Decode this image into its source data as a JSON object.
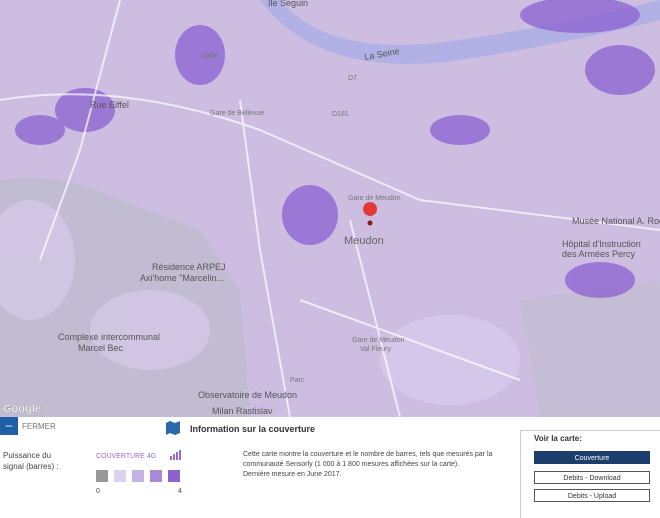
{
  "map": {
    "labels": {
      "ile_seguin": "Île Seguin",
      "seine": "La Seine",
      "rue_eiffel": "Rue Eiffel",
      "gare_bellevue": "Gare de Bellevue",
      "gare_meudon": "Gare de Meudon",
      "meudon": "Meudon",
      "musee": "Musée National A. Rodin",
      "hopital_1": "Hôpital d'Instruction",
      "hopital_2": "des Armées Percy",
      "residence_1": "Résidence ARPEJ",
      "residence_2": "Axi'home \"Marcelin...",
      "complexe_1": "Complexe intercommunal",
      "complexe_2": "Marcel Bec",
      "observatoire": "Observatoire de Meudon",
      "milan": "Milan Rastislav",
      "val_fleury_1": "Gare de Meudon",
      "val_fleury_2": "Val Fleury",
      "parc": "Parc",
      "d406": "D406",
      "d181": "D181",
      "d7": "D7",
      "google": "Google"
    }
  },
  "panel": {
    "close": "FERMER",
    "title": "Information sur la couverture",
    "signal_label_1": "Puissance du",
    "signal_label_2": "signal (barres) :",
    "legend_title": "COUVERTURE 4G",
    "legend_min": "0",
    "legend_max": "4",
    "description_1": "Cette carte montre la couverture et le nombre de barres, tels que mesurés par la",
    "description_2": "communauté Sensorly (1 000 à 1 800 mesures affichées sur la carte).",
    "description_3": "Dernière mesure en June 2017.",
    "view_title": "Voir la carte:",
    "buttons": [
      "Couverture",
      "Debits - Download",
      "Debits - Upload"
    ]
  }
}
